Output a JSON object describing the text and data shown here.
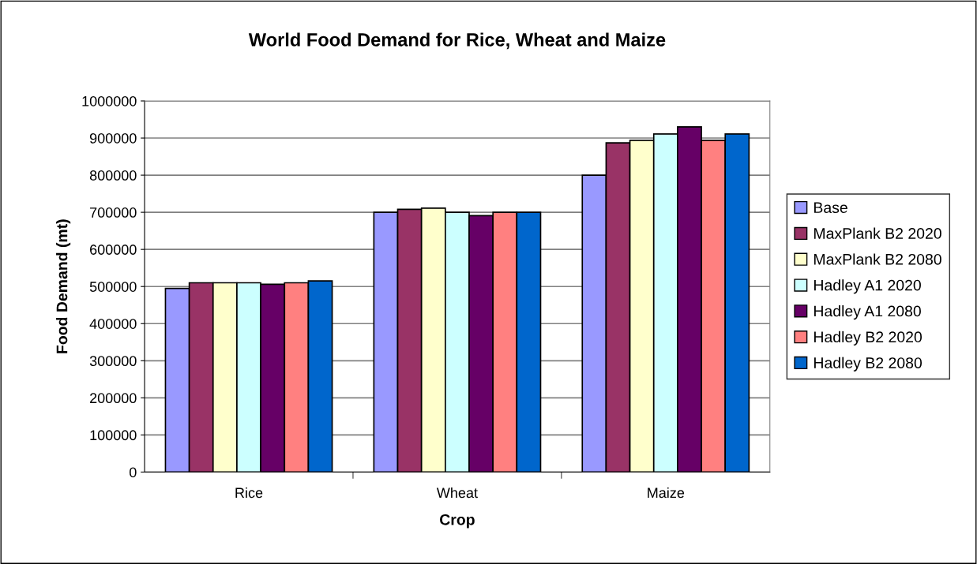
{
  "chart_data": {
    "type": "bar",
    "title": "World Food Demand for Rice, Wheat and Maize",
    "xlabel": "Crop",
    "ylabel": "Food Demand (mt)",
    "categories": [
      "Rice",
      "Wheat",
      "Maize"
    ],
    "series": [
      {
        "name": "Base",
        "color": "#9999ff",
        "values": [
          495000,
          700000,
          800000
        ]
      },
      {
        "name": "MaxPlank B2 2020",
        "color": "#993366",
        "values": [
          510000,
          708000,
          887000
        ]
      },
      {
        "name": "MaxPlank B2 2080",
        "color": "#ffffcc",
        "values": [
          510000,
          711000,
          894000
        ]
      },
      {
        "name": "Hadley A1 2020",
        "color": "#ccffff",
        "values": [
          510000,
          700000,
          911000
        ]
      },
      {
        "name": "Hadley A1 2080",
        "color": "#660066",
        "values": [
          506000,
          691000,
          930000
        ]
      },
      {
        "name": "Hadley B2 2020",
        "color": "#ff8080",
        "values": [
          510000,
          700000,
          894000
        ]
      },
      {
        "name": "Hadley B2 2080",
        "color": "#0066cc",
        "values": [
          515000,
          700000,
          911000
        ]
      }
    ],
    "ylim": [
      0,
      1000000
    ],
    "yticks": [
      0,
      100000,
      200000,
      300000,
      400000,
      500000,
      600000,
      700000,
      800000,
      900000,
      1000000
    ],
    "grid": "y",
    "legend": "right"
  }
}
